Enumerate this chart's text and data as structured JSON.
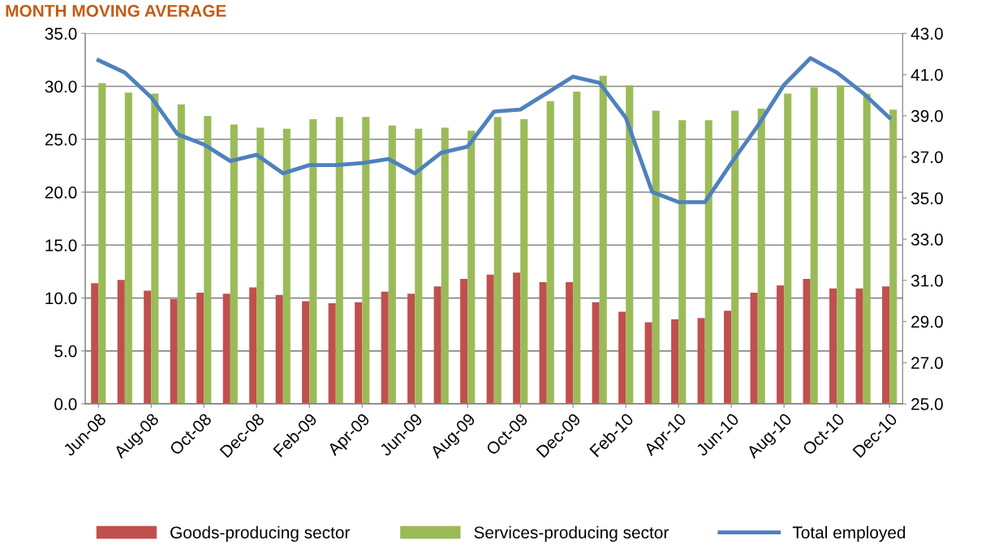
{
  "chart_data": {
    "type": "bar",
    "title": "MONTH MOVING AVERAGE",
    "categories": [
      "Jun-08",
      null,
      "Aug-08",
      null,
      "Oct-08",
      null,
      "Dec-08",
      null,
      "Feb-09",
      null,
      "Apr-09",
      null,
      "Jun-09",
      null,
      "Aug-09",
      null,
      "Oct-09",
      null,
      "Dec-09",
      null,
      "Feb-10",
      null,
      "Apr-10",
      null,
      "Jun-10",
      null,
      "Aug-10",
      null,
      "Oct-10",
      null,
      "Dec-10"
    ],
    "series": [
      {
        "name": "Goods-producing sector",
        "color": "#c0504d",
        "values": [
          11.4,
          11.7,
          10.7,
          9.9,
          10.5,
          10.4,
          11.0,
          10.3,
          9.7,
          9.5,
          9.6,
          10.6,
          10.4,
          11.1,
          11.8,
          12.2,
          12.4,
          11.5,
          11.5,
          9.6,
          8.7,
          7.7,
          8.0,
          8.1,
          8.8,
          10.5,
          11.2,
          11.8,
          10.9,
          10.9,
          11.1
        ]
      },
      {
        "name": "Services-producing sector",
        "color": "#9bbb59",
        "values": [
          30.3,
          29.4,
          29.3,
          28.3,
          27.2,
          26.4,
          26.1,
          26.0,
          26.9,
          27.1,
          27.1,
          26.3,
          26.0,
          26.1,
          25.8,
          27.1,
          26.9,
          28.6,
          29.5,
          31.0,
          30.1,
          27.7,
          26.8,
          26.8,
          27.7,
          27.9,
          29.3,
          29.9,
          30.1,
          29.3,
          27.8
        ]
      },
      {
        "name": "Total employed",
        "type": "line",
        "axis": "y2",
        "color": "#4f81bd",
        "values": [
          41.7,
          41.1,
          39.9,
          38.1,
          37.6,
          36.8,
          37.1,
          36.2,
          36.6,
          36.6,
          36.7,
          36.9,
          36.2,
          37.2,
          37.5,
          39.2,
          39.3,
          40.1,
          40.9,
          40.6,
          38.9,
          35.3,
          34.8,
          34.8,
          36.7,
          38.5,
          40.5,
          41.8,
          41.1,
          40.1,
          38.9
        ]
      }
    ],
    "ylim": [
      0,
      35
    ],
    "yticks": [
      {
        "value": 0,
        "label": "0.0"
      },
      {
        "value": 5,
        "label": "5.0"
      },
      {
        "value": 10,
        "label": "10.0"
      },
      {
        "value": 15,
        "label": "15.0"
      },
      {
        "value": 20,
        "label": "20.0"
      },
      {
        "value": 25,
        "label": "25.0"
      },
      {
        "value": 30,
        "label": "30.0"
      },
      {
        "value": 35,
        "label": "35.0"
      }
    ],
    "y2lim": [
      25,
      43
    ],
    "y2ticks": [
      {
        "value": 25,
        "label": "25.0"
      },
      {
        "value": 27,
        "label": "27.0"
      },
      {
        "value": 29,
        "label": "29.0"
      },
      {
        "value": 31,
        "label": "31.0"
      },
      {
        "value": 33,
        "label": "33.0"
      },
      {
        "value": 35,
        "label": "35.0"
      },
      {
        "value": 37,
        "label": "37.0"
      },
      {
        "value": 39,
        "label": "39.0"
      },
      {
        "value": 41,
        "label": "41.0"
      },
      {
        "value": 43,
        "label": "43.0"
      }
    ],
    "grid": "y",
    "legend": "bottom",
    "marker": "none",
    "line_style": "solid"
  }
}
